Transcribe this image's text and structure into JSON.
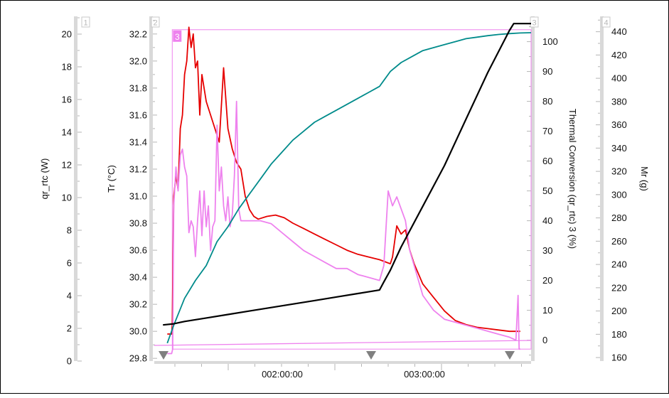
{
  "chart_data": {
    "type": "line",
    "x_axis": {
      "tick_labels": [
        "002:00:00",
        "003:00:00"
      ]
    },
    "axes": [
      {
        "id": "qr",
        "index_label": "1",
        "label": "qr_rtc (W)",
        "range": [
          0,
          21
        ],
        "ticks": [
          0,
          2,
          4,
          6,
          8,
          10,
          12,
          14,
          16,
          18,
          20
        ],
        "decimals": 0
      },
      {
        "id": "tr",
        "index_label": "2",
        "label": "Tr (°C)",
        "range": [
          29.78,
          32.32
        ],
        "ticks": [
          29.8,
          30,
          30.2,
          30.4,
          30.6,
          30.8,
          31,
          31.2,
          31.4,
          31.6,
          31.8,
          32,
          32.2
        ],
        "decimals": 1
      },
      {
        "id": "conv",
        "index_label": "3",
        "label": "Thermal Conversion (qr_rtc) 3 (%)",
        "range": [
          -7,
          108
        ],
        "ticks": [
          0,
          10,
          20,
          30,
          40,
          50,
          60,
          70,
          80,
          90,
          100
        ],
        "decimals": 0
      },
      {
        "id": "mr",
        "index_label": "4",
        "label": "Mr (g)",
        "range": [
          157,
          452
        ],
        "ticks": [
          160,
          180,
          200,
          220,
          240,
          260,
          280,
          300,
          320,
          340,
          360,
          380,
          400,
          420,
          440
        ],
        "decimals": 0
      }
    ],
    "integration_box_label": "3",
    "markers": [
      "event-marker",
      "event-marker",
      "event-marker"
    ],
    "series": [
      {
        "axis": "tr",
        "color": "#e60000",
        "points": [
          [
            1.02,
            29.98
          ],
          [
            1.04,
            29.98
          ],
          [
            1.043,
            30.05
          ],
          [
            1.05,
            31.0
          ],
          [
            1.06,
            31.15
          ],
          [
            1.07,
            31.05
          ],
          [
            1.08,
            31.5
          ],
          [
            1.09,
            31.6
          ],
          [
            1.1,
            31.9
          ],
          [
            1.11,
            32.0
          ],
          [
            1.12,
            32.25
          ],
          [
            1.13,
            32.1
          ],
          [
            1.14,
            32.2
          ],
          [
            1.15,
            31.95
          ],
          [
            1.16,
            32.0
          ],
          [
            1.17,
            31.6
          ],
          [
            1.18,
            31.9
          ],
          [
            1.2,
            31.7
          ],
          [
            1.22,
            31.6
          ],
          [
            1.24,
            31.5
          ],
          [
            1.26,
            31.4
          ],
          [
            1.28,
            31.95
          ],
          [
            1.3,
            31.5
          ],
          [
            1.32,
            31.35
          ],
          [
            1.34,
            31.25
          ],
          [
            1.36,
            31.2
          ],
          [
            1.38,
            31.0
          ],
          [
            1.4,
            30.9
          ],
          [
            1.42,
            30.85
          ],
          [
            1.44,
            30.83
          ],
          [
            1.48,
            30.85
          ],
          [
            1.52,
            30.86
          ],
          [
            1.56,
            30.84
          ],
          [
            1.6,
            30.8
          ],
          [
            1.65,
            30.76
          ],
          [
            1.7,
            30.72
          ],
          [
            1.75,
            30.68
          ],
          [
            1.8,
            30.64
          ],
          [
            1.85,
            30.6
          ],
          [
            1.9,
            30.57
          ],
          [
            1.95,
            30.55
          ],
          [
            2.0,
            30.53
          ],
          [
            2.05,
            30.5
          ],
          [
            2.06,
            30.55
          ],
          [
            2.08,
            30.78
          ],
          [
            2.1,
            30.72
          ],
          [
            2.12,
            30.75
          ],
          [
            2.14,
            30.6
          ],
          [
            2.16,
            30.5
          ],
          [
            2.2,
            30.35
          ],
          [
            2.25,
            30.25
          ],
          [
            2.3,
            30.15
          ],
          [
            2.35,
            30.08
          ],
          [
            2.4,
            30.05
          ],
          [
            2.45,
            30.03
          ],
          [
            2.5,
            30.02
          ],
          [
            2.55,
            30.01
          ],
          [
            2.6,
            30.0
          ],
          [
            2.63,
            30.0
          ],
          [
            2.65,
            30.0
          ]
        ]
      },
      {
        "axis": "conv",
        "color": "#ee82ee",
        "points": [
          [
            1.02,
            -4.5
          ],
          [
            1.04,
            -4.5
          ],
          [
            1.045,
            -3
          ],
          [
            1.05,
            45
          ],
          [
            1.06,
            58
          ],
          [
            1.07,
            50
          ],
          [
            1.08,
            62
          ],
          [
            1.09,
            64
          ],
          [
            1.1,
            58
          ],
          [
            1.11,
            55
          ],
          [
            1.12,
            36
          ],
          [
            1.13,
            40
          ],
          [
            1.14,
            38
          ],
          [
            1.15,
            28
          ],
          [
            1.16,
            40
          ],
          [
            1.17,
            50
          ],
          [
            1.18,
            35
          ],
          [
            1.19,
            50
          ],
          [
            1.2,
            38
          ],
          [
            1.21,
            45
          ],
          [
            1.22,
            30
          ],
          [
            1.23,
            38
          ],
          [
            1.24,
            40
          ],
          [
            1.25,
            72
          ],
          [
            1.26,
            50
          ],
          [
            1.27,
            58
          ],
          [
            1.28,
            45
          ],
          [
            1.29,
            40
          ],
          [
            1.3,
            48
          ],
          [
            1.31,
            38
          ],
          [
            1.32,
            42
          ],
          [
            1.33,
            55
          ],
          [
            1.34,
            80
          ],
          [
            1.35,
            44
          ],
          [
            1.36,
            40
          ],
          [
            1.4,
            40
          ],
          [
            1.45,
            40
          ],
          [
            1.5,
            39
          ],
          [
            1.55,
            36
          ],
          [
            1.6,
            33
          ],
          [
            1.65,
            30
          ],
          [
            1.7,
            28
          ],
          [
            1.75,
            26
          ],
          [
            1.8,
            24
          ],
          [
            1.85,
            24
          ],
          [
            1.9,
            22
          ],
          [
            1.95,
            21
          ],
          [
            2.0,
            20
          ],
          [
            2.02,
            25
          ],
          [
            2.04,
            50
          ],
          [
            2.06,
            45
          ],
          [
            2.08,
            48
          ],
          [
            2.1,
            44
          ],
          [
            2.12,
            40
          ],
          [
            2.14,
            30
          ],
          [
            2.16,
            25
          ],
          [
            2.2,
            15
          ],
          [
            2.25,
            10
          ],
          [
            2.3,
            7
          ],
          [
            2.35,
            6
          ],
          [
            2.4,
            5
          ],
          [
            2.45,
            4
          ],
          [
            2.5,
            3
          ],
          [
            2.55,
            2
          ],
          [
            2.6,
            1
          ],
          [
            2.63,
            0
          ],
          [
            2.64,
            15
          ],
          [
            2.645,
            -3
          ],
          [
            2.65,
            -3
          ]
        ]
      },
      {
        "axis": "conv",
        "color": "#008b8b",
        "points": [
          [
            1.02,
            -1
          ],
          [
            1.05,
            5
          ],
          [
            1.1,
            14
          ],
          [
            1.15,
            20
          ],
          [
            1.2,
            25
          ],
          [
            1.25,
            33
          ],
          [
            1.3,
            38
          ],
          [
            1.35,
            44
          ],
          [
            1.4,
            49
          ],
          [
            1.45,
            54
          ],
          [
            1.5,
            59
          ],
          [
            1.55,
            63
          ],
          [
            1.6,
            67
          ],
          [
            1.65,
            70
          ],
          [
            1.7,
            73
          ],
          [
            1.75,
            75
          ],
          [
            1.8,
            77
          ],
          [
            1.85,
            79
          ],
          [
            1.9,
            81
          ],
          [
            1.95,
            83
          ],
          [
            2.0,
            85
          ],
          [
            2.02,
            87
          ],
          [
            2.05,
            90
          ],
          [
            2.1,
            93
          ],
          [
            2.15,
            95
          ],
          [
            2.2,
            97
          ],
          [
            2.25,
            98
          ],
          [
            2.3,
            99
          ],
          [
            2.35,
            100
          ],
          [
            2.4,
            101
          ],
          [
            2.45,
            101.5
          ],
          [
            2.5,
            102
          ],
          [
            2.55,
            102.4
          ],
          [
            2.6,
            102.7
          ],
          [
            2.65,
            102.9
          ],
          [
            2.7,
            103
          ]
        ]
      },
      {
        "axis": "mr",
        "color": "#000000",
        "points": [
          [
            1.0,
            188
          ],
          [
            1.05,
            189
          ],
          [
            1.1,
            191
          ],
          [
            1.2,
            194
          ],
          [
            1.3,
            197
          ],
          [
            1.4,
            200
          ],
          [
            1.5,
            203
          ],
          [
            1.6,
            206
          ],
          [
            1.7,
            209
          ],
          [
            1.8,
            212
          ],
          [
            1.9,
            215
          ],
          [
            2.0,
            218
          ],
          [
            2.02,
            225
          ],
          [
            2.05,
            235
          ],
          [
            2.1,
            255
          ],
          [
            2.2,
            290
          ],
          [
            2.3,
            325
          ],
          [
            2.4,
            365
          ],
          [
            2.5,
            405
          ],
          [
            2.6,
            441
          ],
          [
            2.62,
            447
          ],
          [
            2.65,
            447
          ],
          [
            2.7,
            447
          ]
        ]
      }
    ]
  }
}
